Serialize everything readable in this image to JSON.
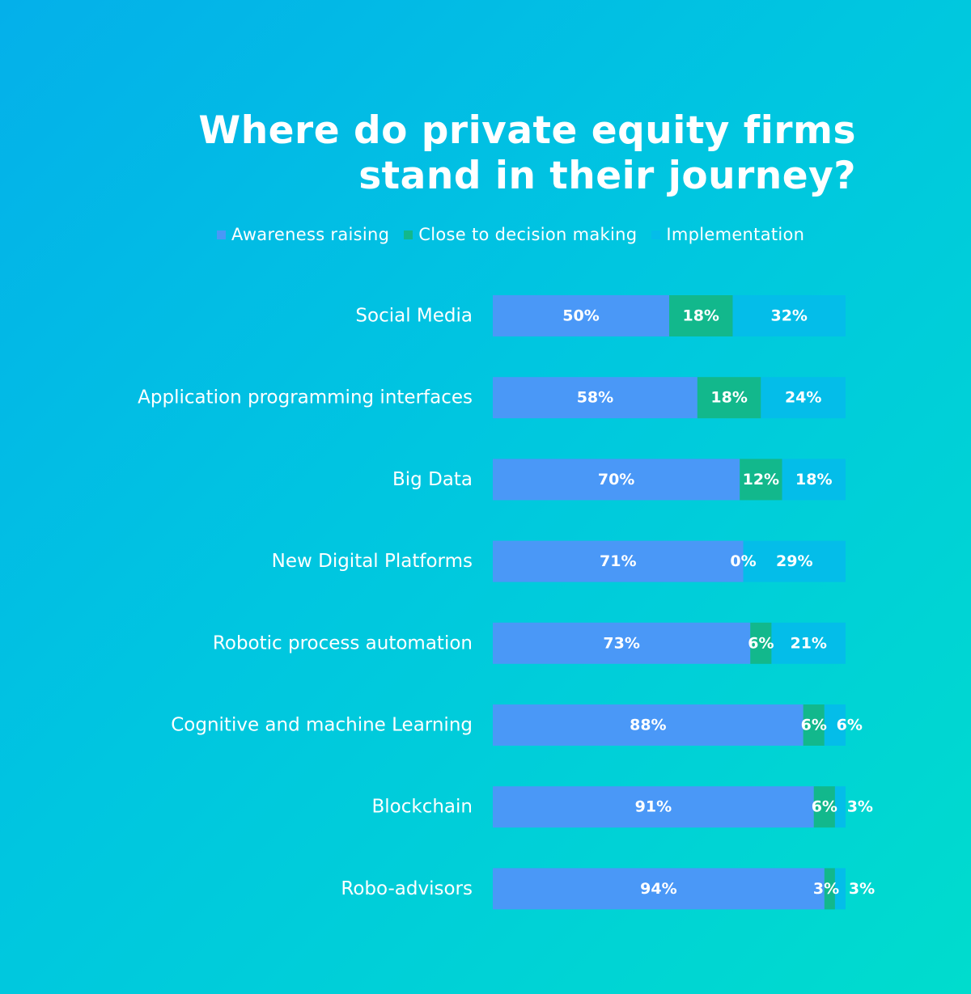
{
  "chart_data": {
    "type": "bar",
    "orientation": "horizontal",
    "stacked": true,
    "title_lines": [
      "Where do private equity firms",
      "stand in their journey?"
    ],
    "categories": [
      "Social Media",
      "Application programming interfaces",
      "Big Data",
      "New Digital Platforms",
      "Robotic process automation",
      "Cognitive and machine Learning",
      "Blockchain",
      "Robo-advisors"
    ],
    "series": [
      {
        "name": "Awareness raising",
        "color": "#4a98f7",
        "values": [
          50,
          58,
          70,
          71,
          73,
          88,
          91,
          94
        ]
      },
      {
        "name": "Close to decision making",
        "color": "#12b88c",
        "values": [
          18,
          18,
          12,
          0,
          6,
          6,
          6,
          3
        ]
      },
      {
        "name": "Implementation",
        "color": "#04bde9",
        "values": [
          32,
          24,
          18,
          29,
          21,
          6,
          3,
          3
        ]
      }
    ],
    "value_suffix": "%",
    "xlim": [
      0,
      100
    ],
    "legend_position": "top",
    "grid": false
  }
}
